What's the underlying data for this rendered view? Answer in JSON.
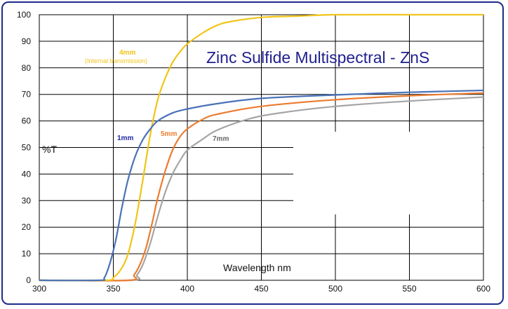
{
  "chart_data": {
    "type": "line",
    "title": "Zinc Sulfide Multispectral - ZnS",
    "xlabel": "Wavelength nm",
    "ylabel": "%T",
    "xlim": [
      300,
      600
    ],
    "ylim": [
      0,
      100
    ],
    "xticks": [
      300,
      350,
      400,
      450,
      500,
      550,
      600
    ],
    "yticks": [
      0,
      10,
      20,
      30,
      40,
      50,
      60,
      70,
      80,
      90,
      100
    ],
    "grid": true,
    "series": [
      {
        "name": "4mm",
        "sublabel": "(Internal transmission)",
        "color": "#f0c419",
        "points": [
          [
            300,
            0
          ],
          [
            345,
            0
          ],
          [
            350,
            1
          ],
          [
            355,
            4
          ],
          [
            360,
            10
          ],
          [
            365,
            22
          ],
          [
            370,
            38
          ],
          [
            375,
            55
          ],
          [
            380,
            68
          ],
          [
            385,
            76
          ],
          [
            390,
            82
          ],
          [
            395,
            86
          ],
          [
            400,
            89
          ],
          [
            410,
            93
          ],
          [
            420,
            96
          ],
          [
            430,
            97.5
          ],
          [
            450,
            99
          ],
          [
            475,
            99.5
          ],
          [
            500,
            100
          ],
          [
            550,
            100
          ],
          [
            600,
            100
          ]
        ]
      },
      {
        "name": "1mm",
        "color": "#4a72b8",
        "points": [
          [
            300,
            0
          ],
          [
            340,
            0
          ],
          [
            344,
            1
          ],
          [
            348,
            7
          ],
          [
            352,
            16
          ],
          [
            356,
            28
          ],
          [
            360,
            38
          ],
          [
            365,
            47
          ],
          [
            370,
            53
          ],
          [
            375,
            57
          ],
          [
            380,
            60
          ],
          [
            390,
            63
          ],
          [
            400,
            64.5
          ],
          [
            420,
            66.5
          ],
          [
            450,
            68.5
          ],
          [
            500,
            69.8
          ],
          [
            550,
            70.8
          ],
          [
            600,
            71.5
          ]
        ]
      },
      {
        "name": "5mm",
        "color": "#ec7b2e",
        "points": [
          [
            300,
            0
          ],
          [
            360,
            0
          ],
          [
            364,
            2
          ],
          [
            368,
            6
          ],
          [
            372,
            12
          ],
          [
            376,
            21
          ],
          [
            380,
            31
          ],
          [
            385,
            41
          ],
          [
            390,
            49
          ],
          [
            395,
            54
          ],
          [
            400,
            57
          ],
          [
            410,
            60.5
          ],
          [
            420,
            62.5
          ],
          [
            450,
            65.5
          ],
          [
            500,
            68
          ],
          [
            550,
            69.5
          ],
          [
            600,
            70.5
          ]
        ]
      },
      {
        "name": "7mm",
        "color": "#a5a5a5",
        "points": [
          [
            300,
            0
          ],
          [
            362,
            0
          ],
          [
            366,
            2
          ],
          [
            370,
            6
          ],
          [
            375,
            14
          ],
          [
            380,
            24
          ],
          [
            385,
            33
          ],
          [
            390,
            40
          ],
          [
            395,
            45
          ],
          [
            400,
            49
          ],
          [
            410,
            53
          ],
          [
            420,
            56.5
          ],
          [
            440,
            60.5
          ],
          [
            460,
            62.8
          ],
          [
            500,
            65.5
          ],
          [
            550,
            67.5
          ],
          [
            600,
            69
          ]
        ]
      }
    ],
    "annotations": [
      {
        "text": "4mm",
        "series": "4mm"
      },
      {
        "text": "(Internal transmission)",
        "series": "4mm"
      },
      {
        "text": "1mm",
        "series": "1mm"
      },
      {
        "text": "5mm",
        "series": "5mm"
      },
      {
        "text": "7mm",
        "series": "7mm"
      }
    ]
  },
  "colors": {
    "frame": "#1f2a8c",
    "grid": "#000000",
    "title": "#1f1f8f"
  }
}
